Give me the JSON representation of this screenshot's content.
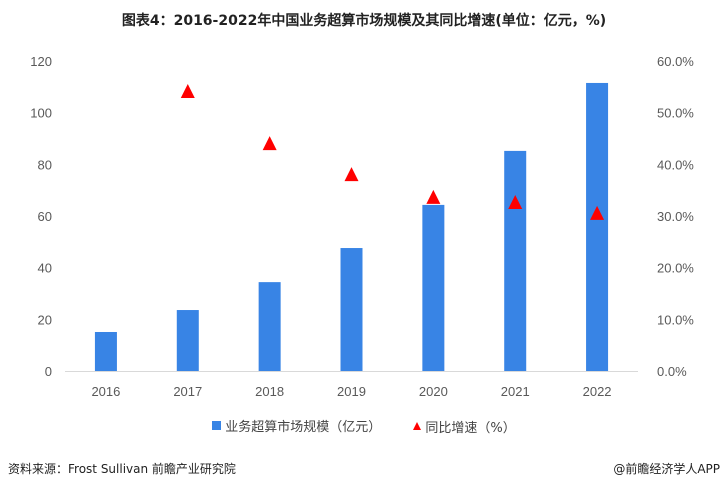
{
  "title": "图表4：2016-2022年中国业务超算市场规模及其同比增速(单位：亿元，%)",
  "chart_data": {
    "type": "bar+scatter",
    "title": "图表4：2016-2022年中国业务超算市场规模及其同比增速(单位：亿元，%)",
    "categories": [
      "2016",
      "2017",
      "2018",
      "2019",
      "2020",
      "2021",
      "2022"
    ],
    "series": [
      {
        "name": "业务超算市场规模（亿元）",
        "type": "bar",
        "axis": "left",
        "color": "#3884e5",
        "values": [
          15.1,
          23.6,
          34.4,
          47.6,
          64.3,
          85.2,
          111.5
        ]
      },
      {
        "name": "同比增速（%）",
        "type": "scatter",
        "marker": "triangle",
        "axis": "right",
        "color": "#ff0000",
        "values": [
          null,
          54.2,
          44.1,
          38.1,
          33.7,
          32.7,
          30.6
        ]
      }
    ],
    "ylim": [
      0,
      120
    ],
    "yticks": [
      "0",
      "20",
      "40",
      "60",
      "80",
      "100",
      "120"
    ],
    "y2lim": [
      0,
      60
    ],
    "y2ticks": [
      "0.0%",
      "10.0%",
      "20.0%",
      "30.0%",
      "40.0%",
      "50.0%",
      "60.0%"
    ],
    "grid": false,
    "legend": "bottom"
  },
  "footer": {
    "source": "资料来源：Frost Sullivan 前瞻产业研究院",
    "brand": "@前瞻经济学人APP"
  }
}
